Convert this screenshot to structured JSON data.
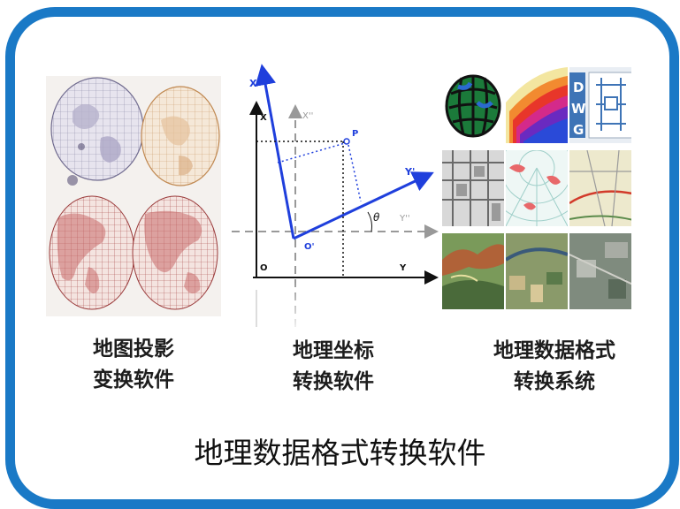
{
  "captions": {
    "projection_line1": "地图投影",
    "projection_line2": "变换软件",
    "coordinate_line1": "地理坐标",
    "coordinate_line2": "转换软件",
    "format_line1": "地理数据格式",
    "format_line2": "转换系统"
  },
  "bottom_title": "地理数据格式转换软件",
  "diagram_labels": {
    "x_prime": "X'",
    "x": "X",
    "x_double_prime": "X''",
    "p": "P",
    "y_prime": "Y'",
    "theta": "θ",
    "y_double_prime": "Y''",
    "o_prime": "O'",
    "o": "O",
    "y": "Y"
  },
  "dwg_label": {
    "d": "D",
    "w": "W",
    "g": "G"
  },
  "colors": {
    "frame_blue": "#1a79c6",
    "axis_blue": "#1f3fdc"
  }
}
